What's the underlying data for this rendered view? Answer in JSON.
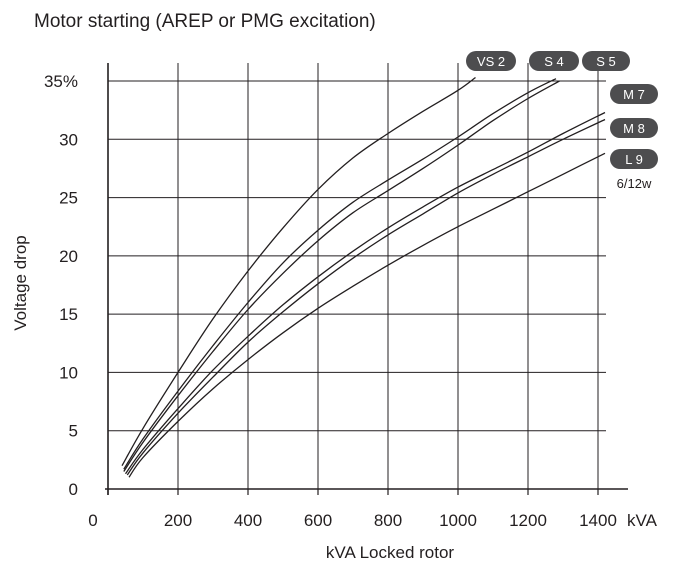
{
  "chart_data": {
    "type": "line",
    "title": "Motor starting (AREP or PMG excitation)",
    "xlabel": "kVA Locked rotor",
    "ylabel": "Voltage drop",
    "x_unit": "kVA",
    "xlim": [
      0,
      1400
    ],
    "ylim": [
      0,
      35
    ],
    "x_ticks": [
      "0",
      "200",
      "400",
      "600",
      "800",
      "1000",
      "1200",
      "1400"
    ],
    "y_ticks": [
      "0",
      "5",
      "10",
      "15",
      "20",
      "25",
      "30",
      "35%"
    ],
    "grid": true,
    "line_color": "#231f20",
    "badge_color": "#4d4d4f",
    "series": [
      {
        "name": "VS 2",
        "x": [
          40,
          100,
          200,
          300,
          400,
          500,
          600,
          700,
          800,
          900,
          1000,
          1050
        ],
        "y": [
          2.0,
          5.2,
          10.0,
          14.6,
          18.7,
          22.4,
          25.7,
          28.4,
          30.5,
          32.4,
          34.2,
          35.3
        ]
      },
      {
        "name": "S 4",
        "x": [
          45,
          100,
          200,
          300,
          400,
          500,
          600,
          700,
          800,
          900,
          1000,
          1100,
          1200,
          1280
        ],
        "y": [
          1.7,
          4.3,
          8.4,
          12.3,
          16.0,
          19.4,
          22.2,
          24.6,
          26.5,
          28.3,
          30.2,
          32.2,
          34.0,
          35.2
        ]
      },
      {
        "name": "S 5",
        "x": [
          45,
          100,
          200,
          300,
          400,
          500,
          600,
          700,
          800,
          900,
          1000,
          1100,
          1200,
          1290
        ],
        "y": [
          1.5,
          4.0,
          8.0,
          11.8,
          15.4,
          18.5,
          21.3,
          23.7,
          25.6,
          27.5,
          29.5,
          31.6,
          33.5,
          35.0
        ]
      },
      {
        "name": "M 7",
        "x": [
          50,
          100,
          200,
          300,
          400,
          500,
          600,
          700,
          800,
          900,
          1000,
          1100,
          1200,
          1300,
          1420
        ],
        "y": [
          1.3,
          3.4,
          6.9,
          10.2,
          13.1,
          15.8,
          18.2,
          20.4,
          22.4,
          24.2,
          25.9,
          27.4,
          28.9,
          30.5,
          32.3
        ]
      },
      {
        "name": "M 8",
        "x": [
          55,
          100,
          200,
          300,
          400,
          500,
          600,
          700,
          800,
          900,
          1000,
          1100,
          1200,
          1300,
          1420
        ],
        "y": [
          1.2,
          3.1,
          6.5,
          9.6,
          12.6,
          15.2,
          17.6,
          19.8,
          21.8,
          23.6,
          25.4,
          27.0,
          28.5,
          30.0,
          31.7
        ]
      },
      {
        "name": "L 9",
        "x": [
          60,
          100,
          200,
          300,
          400,
          500,
          600,
          700,
          800,
          900,
          1000,
          1100,
          1200,
          1300,
          1420
        ],
        "y": [
          1.0,
          2.7,
          5.8,
          8.6,
          11.1,
          13.4,
          15.5,
          17.4,
          19.2,
          20.9,
          22.5,
          24.0,
          25.5,
          27.0,
          28.8
        ]
      }
    ],
    "badges": {
      "vs2": "VS 2",
      "s4": "S 4",
      "s5": "S 5",
      "m7": "M 7",
      "m8": "M 8",
      "l9": "L 9"
    },
    "note": "6/12w"
  }
}
